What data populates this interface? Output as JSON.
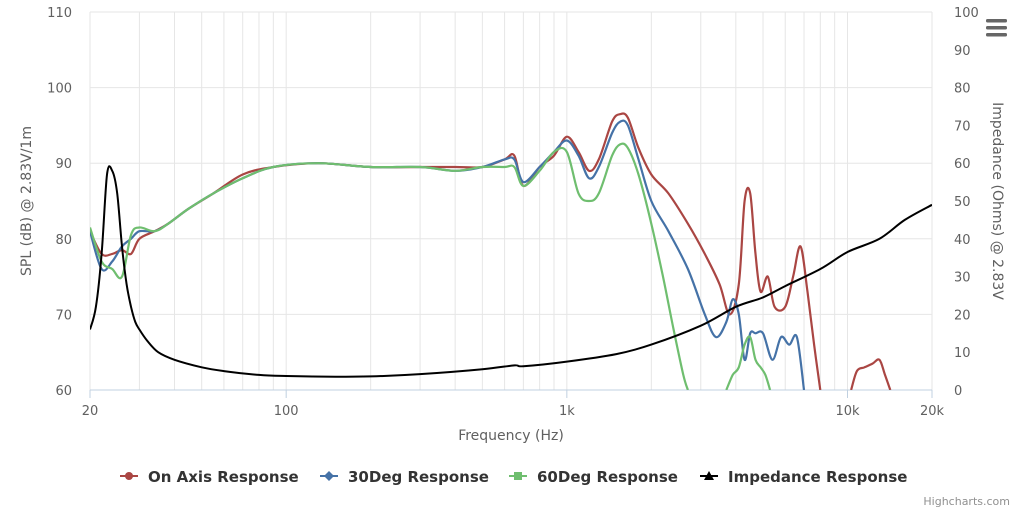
{
  "menu": {
    "icon": "hamburger-menu-icon"
  },
  "credit": "Highcharts.com",
  "chart_data": {
    "type": "line",
    "title": "",
    "xlabel": "Frequency (Hz)",
    "ylabel": "SPL (dB) @ 2.83V/1m",
    "y2label": "Impedance (Ohms) @ 2.83V",
    "xscale": "log",
    "xlim": [
      20,
      20000
    ],
    "ylim": [
      60,
      110
    ],
    "y2lim": [
      0,
      100
    ],
    "grid": true,
    "legend": "bottom-center",
    "x_tick_labels": [
      "20",
      "100",
      "1k",
      "10k",
      "20k"
    ],
    "x_ticks": [
      20,
      100,
      1000,
      10000,
      20000
    ],
    "y_ticks": [
      "60",
      "70",
      "80",
      "90",
      "100",
      "110"
    ],
    "y2_ticks": [
      "0",
      "10",
      "20",
      "30",
      "40",
      "50",
      "60",
      "70",
      "80",
      "90",
      "100"
    ],
    "series": [
      {
        "name": "On Axis Response",
        "axis": "left",
        "color": "#aa4643",
        "marker": "circle",
        "x": [
          20,
          22,
          24,
          26,
          28,
          30,
          34,
          38,
          45,
          55,
          70,
          90,
          130,
          200,
          300,
          400,
          500,
          600,
          650,
          700,
          800,
          900,
          1000,
          1100,
          1200,
          1300,
          1450,
          1550,
          1650,
          1800,
          2000,
          2300,
          2700,
          3100,
          3500,
          3800,
          4100,
          4300,
          4500,
          4700,
          4900,
          5200,
          5500,
          6000,
          6400,
          6800,
          7200,
          7600,
          8000
        ],
        "y": [
          81,
          78,
          78,
          78.5,
          78,
          80,
          81,
          82,
          84,
          86,
          88.5,
          89.5,
          90,
          89.5,
          89.5,
          89.5,
          89.5,
          90.5,
          91,
          87,
          89.5,
          91,
          93.5,
          91.5,
          89,
          90.5,
          95.5,
          96.5,
          96,
          92,
          88.5,
          86,
          82,
          78,
          74,
          70,
          74,
          85,
          86,
          78,
          73,
          75,
          71,
          71,
          75,
          79,
          73,
          66,
          60
        ]
      },
      {
        "name": "30Deg Response",
        "axis": "left",
        "color": "#4572a7",
        "marker": "diamond",
        "x": [
          20,
          22,
          24,
          26,
          28,
          30,
          34,
          38,
          45,
          55,
          70,
          90,
          130,
          200,
          300,
          400,
          500,
          600,
          650,
          700,
          800,
          900,
          1000,
          1100,
          1200,
          1300,
          1450,
          1550,
          1650,
          1800,
          2000,
          2300,
          2700,
          3100,
          3400,
          3700,
          3900,
          4100,
          4300,
          4500,
          4700,
          5000,
          5400,
          5800,
          6200,
          6600,
          7000
        ],
        "y": [
          81,
          76,
          77,
          79,
          80,
          81,
          81,
          82,
          84,
          86,
          88,
          89.5,
          90,
          89.5,
          89.5,
          89,
          89.5,
          90.5,
          90.5,
          87.5,
          89.5,
          91.5,
          93,
          91,
          88,
          89.5,
          94,
          95.5,
          95,
          90.5,
          85,
          81,
          76,
          70,
          67,
          69,
          72,
          70,
          64,
          67.5,
          67.5,
          67.5,
          64,
          67,
          66,
          67,
          60
        ]
      },
      {
        "name": "60Deg Response",
        "axis": "left",
        "color": "#6fbe6f",
        "marker": "square",
        "x": [
          20,
          22,
          24,
          26,
          28,
          30,
          34,
          38,
          45,
          55,
          70,
          90,
          130,
          200,
          300,
          400,
          500,
          600,
          650,
          700,
          800,
          900,
          1000,
          1100,
          1200,
          1300,
          1450,
          1550,
          1650,
          1800,
          2000,
          2200,
          2400,
          2600,
          2700
        ],
        "y": [
          81.5,
          77,
          76,
          75,
          80.5,
          81.5,
          81,
          82,
          84,
          86,
          88,
          89.5,
          90,
          89.5,
          89.5,
          89,
          89.5,
          89.5,
          89.5,
          87,
          89,
          91.5,
          91.5,
          86,
          85,
          86,
          91,
          92.5,
          92,
          88.5,
          82,
          75,
          68,
          62,
          60
        ]
      },
      {
        "name": "60Deg Response tail",
        "axis": "left",
        "color": "#6fbe6f",
        "marker": "none",
        "x": [
          3700,
          3900,
          4100,
          4300,
          4500,
          4700,
          4900,
          5100,
          5300
        ],
        "y": [
          60,
          62,
          63,
          66,
          67,
          64,
          63,
          62,
          60
        ]
      },
      {
        "name": "On Axis Response tail",
        "axis": "left",
        "color": "#aa4643",
        "marker": "none",
        "x": [
          10300,
          10800,
          11500,
          12300,
          13000,
          13600,
          14200
        ],
        "y": [
          60,
          62.5,
          63,
          63.5,
          64,
          62,
          60
        ]
      },
      {
        "name": "Impedance Response",
        "axis": "right",
        "color": "#000000",
        "marker": "triangle",
        "x": [
          20,
          21,
          22,
          23,
          24,
          25,
          26,
          27,
          28,
          29,
          30,
          32,
          35,
          40,
          50,
          60,
          80,
          100,
          150,
          200,
          300,
          500,
          650,
          700,
          1000,
          1500,
          2000,
          3000,
          4000,
          5000,
          6000,
          8000,
          10000,
          13000,
          16000,
          20000
        ],
        "y": [
          16,
          22,
          36,
          57,
          58,
          52,
          38,
          28,
          22,
          18,
          16,
          13,
          10,
          8,
          6,
          5,
          4,
          3.7,
          3.5,
          3.6,
          4.2,
          5.5,
          6.5,
          6.3,
          7.5,
          9.5,
          12,
          17,
          22,
          24.5,
          27.5,
          32,
          36.5,
          40,
          45,
          49
        ]
      }
    ]
  }
}
